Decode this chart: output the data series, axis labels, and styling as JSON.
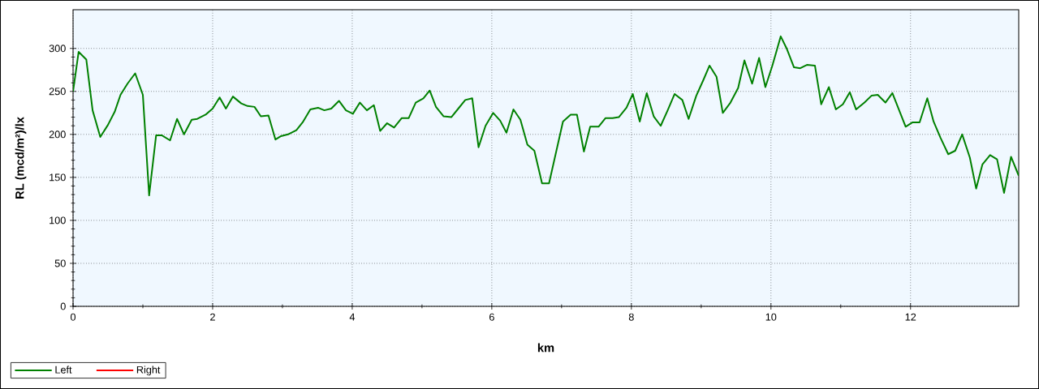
{
  "chart_data": {
    "type": "line",
    "xlabel": "km",
    "ylabel": "RL (mcd/m²)/lx",
    "xlim": [
      0,
      13.55
    ],
    "ylim": [
      0,
      345
    ],
    "xticks": [
      0,
      2,
      4,
      6,
      8,
      10,
      12
    ],
    "yticks": [
      0,
      50,
      100,
      150,
      200,
      250,
      300
    ],
    "grid": true,
    "legend": "bottom left",
    "marker": "none",
    "line_style": "solid",
    "x": [
      0,
      0.08,
      0.19,
      0.28,
      0.39,
      0.5,
      0.6,
      0.68,
      0.78,
      0.89,
      1.0,
      1.09,
      1.19,
      1.27,
      1.39,
      1.49,
      1.59,
      1.7,
      1.78,
      1.9,
      2.0,
      2.1,
      2.19,
      2.29,
      2.41,
      2.5,
      2.6,
      2.69,
      2.8,
      2.9,
      2.98,
      3.08,
      3.2,
      3.29,
      3.4,
      3.51,
      3.6,
      3.7,
      3.81,
      3.91,
      4.01,
      4.11,
      4.21,
      4.31,
      4.4,
      4.5,
      4.6,
      4.71,
      4.81,
      4.91,
      5.02,
      5.11,
      5.2,
      5.31,
      5.42,
      5.52,
      5.62,
      5.72,
      5.81,
      5.91,
      6.02,
      6.12,
      6.21,
      6.31,
      6.41,
      6.51,
      6.61,
      6.72,
      6.82,
      7.02,
      7.13,
      7.22,
      7.32,
      7.41,
      7.53,
      7.63,
      7.73,
      7.82,
      7.93,
      8.02,
      8.12,
      8.22,
      8.32,
      8.42,
      8.52,
      8.62,
      8.73,
      8.82,
      8.93,
      9.03,
      9.12,
      9.22,
      9.31,
      9.42,
      9.53,
      9.62,
      9.73,
      9.83,
      9.92,
      10.02,
      10.14,
      10.23,
      10.33,
      10.42,
      10.52,
      10.63,
      10.72,
      10.83,
      10.93,
      11.03,
      11.13,
      11.22,
      11.34,
      11.44,
      11.53,
      11.64,
      11.74,
      11.93,
      12.03,
      12.13,
      12.24,
      12.33,
      12.43,
      12.54,
      12.64,
      12.74,
      12.85,
      12.94,
      13.03,
      13.14,
      13.24,
      13.34,
      13.44,
      13.55
    ],
    "series": [
      {
        "name": "Left",
        "color": "#008000",
        "values": [
          250,
          296,
          287,
          228,
          197,
          211,
          227,
          246,
          259,
          271,
          246,
          129,
          199,
          199,
          193,
          218,
          200,
          217,
          218,
          223,
          230,
          243,
          230,
          244,
          236,
          233,
          232,
          221,
          222,
          194,
          198,
          200,
          205,
          214,
          229,
          231,
          228,
          230,
          239,
          228,
          224,
          237,
          228,
          234,
          204,
          213,
          208,
          219,
          219,
          237,
          242,
          251,
          232,
          221,
          220,
          230,
          240,
          242,
          185,
          210,
          225,
          216,
          202,
          229,
          217,
          188,
          181,
          143,
          143,
          215,
          223,
          223,
          180,
          209,
          209,
          219,
          219,
          220,
          231,
          247,
          215,
          248,
          221,
          210,
          228,
          247,
          240,
          218,
          245,
          263,
          280,
          267,
          225,
          237,
          254,
          286,
          259,
          289,
          255,
          280,
          314,
          299,
          278,
          277,
          281,
          280,
          235,
          255,
          229,
          235,
          249,
          229,
          237,
          245,
          246,
          237,
          248,
          209,
          214,
          214,
          242,
          215,
          196,
          177,
          181,
          200,
          173,
          137,
          165,
          176,
          171,
          132,
          174,
          152
        ]
      },
      {
        "name": "Right",
        "color": "#ff0000",
        "values": [
          null,
          null,
          null,
          null,
          null,
          null,
          null,
          null,
          null,
          null,
          null,
          null,
          null,
          null,
          null,
          null,
          null,
          null,
          null,
          null,
          null,
          null,
          null,
          null,
          null,
          null,
          null,
          null,
          null,
          null,
          null,
          null,
          null,
          null,
          null,
          null,
          null,
          null,
          null,
          null,
          null,
          null,
          null,
          null,
          null,
          null,
          null,
          null,
          null,
          null,
          null,
          null,
          null,
          null,
          null,
          null,
          null,
          null,
          null,
          null,
          null,
          null,
          null,
          null,
          null,
          null,
          null,
          null,
          null,
          null,
          null,
          null,
          null,
          null,
          null,
          null,
          null,
          null,
          null,
          null,
          null,
          null,
          null,
          null,
          null,
          null,
          null,
          null,
          null,
          null,
          null,
          null,
          null,
          null,
          null,
          null,
          null,
          null,
          null,
          null,
          null,
          null,
          null,
          null,
          null,
          null,
          null,
          null,
          null,
          null,
          null,
          null,
          null,
          null,
          null,
          null,
          null,
          null,
          null,
          null,
          null,
          null,
          null,
          null,
          null,
          null,
          null,
          null,
          null,
          null,
          null,
          null,
          null,
          null
        ]
      }
    ]
  }
}
